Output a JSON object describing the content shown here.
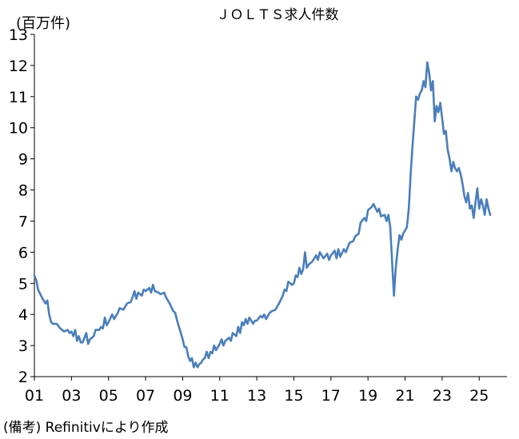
{
  "chart_data": {
    "type": "line",
    "title": "ＪＯＬＴＳ求人件数",
    "unit_label": "(百万件)",
    "source_note": "(備考) Refinitivにより作成",
    "xlabel": "",
    "ylabel": "",
    "x_tick_labels": [
      "01",
      "03",
      "05",
      "07",
      "09",
      "11",
      "13",
      "15",
      "17",
      "19",
      "21",
      "23",
      "25"
    ],
    "x_ticks": [
      2001,
      2003,
      2005,
      2007,
      2009,
      2011,
      2013,
      2015,
      2017,
      2019,
      2021,
      2023,
      2025
    ],
    "xlim": [
      2001,
      2026.5
    ],
    "y_ticks": [
      2,
      3,
      4,
      5,
      6,
      7,
      8,
      9,
      10,
      11,
      12,
      13
    ],
    "ylim": [
      2,
      13
    ],
    "grid": false,
    "line_color": "#4a7ebb",
    "series": [
      {
        "points": [
          [
            2001.0,
            5.25
          ],
          [
            2001.1,
            5.1
          ],
          [
            2001.2,
            4.8
          ],
          [
            2001.4,
            4.55
          ],
          [
            2001.6,
            4.35
          ],
          [
            2001.7,
            4.45
          ],
          [
            2001.8,
            4.0
          ],
          [
            2001.9,
            3.75
          ],
          [
            2002.0,
            3.7
          ],
          [
            2002.2,
            3.7
          ],
          [
            2002.4,
            3.55
          ],
          [
            2002.6,
            3.45
          ],
          [
            2002.8,
            3.5
          ],
          [
            2002.9,
            3.4
          ],
          [
            2003.0,
            3.45
          ],
          [
            2003.1,
            3.3
          ],
          [
            2003.2,
            3.5
          ],
          [
            2003.3,
            3.15
          ],
          [
            2003.4,
            3.3
          ],
          [
            2003.5,
            3.1
          ],
          [
            2003.6,
            3.1
          ],
          [
            2003.7,
            3.25
          ],
          [
            2003.8,
            3.4
          ],
          [
            2003.9,
            3.05
          ],
          [
            2004.0,
            3.2
          ],
          [
            2004.2,
            3.3
          ],
          [
            2004.3,
            3.5
          ],
          [
            2004.5,
            3.5
          ],
          [
            2004.6,
            3.6
          ],
          [
            2004.7,
            3.55
          ],
          [
            2004.8,
            3.9
          ],
          [
            2004.9,
            3.65
          ],
          [
            2005.0,
            3.75
          ],
          [
            2005.2,
            4.0
          ],
          [
            2005.3,
            3.85
          ],
          [
            2005.5,
            4.05
          ],
          [
            2005.6,
            4.2
          ],
          [
            2005.8,
            4.15
          ],
          [
            2006.0,
            4.35
          ],
          [
            2006.2,
            4.4
          ],
          [
            2006.3,
            4.55
          ],
          [
            2006.4,
            4.75
          ],
          [
            2006.5,
            4.5
          ],
          [
            2006.6,
            4.7
          ],
          [
            2006.8,
            4.6
          ],
          [
            2006.9,
            4.8
          ],
          [
            2007.0,
            4.75
          ],
          [
            2007.2,
            4.85
          ],
          [
            2007.3,
            4.7
          ],
          [
            2007.4,
            4.95
          ],
          [
            2007.5,
            4.75
          ],
          [
            2007.7,
            4.7
          ],
          [
            2007.8,
            4.65
          ],
          [
            2008.0,
            4.7
          ],
          [
            2008.1,
            4.55
          ],
          [
            2008.3,
            4.35
          ],
          [
            2008.5,
            4.1
          ],
          [
            2008.6,
            4.05
          ],
          [
            2008.7,
            3.8
          ],
          [
            2008.8,
            3.6
          ],
          [
            2009.0,
            3.2
          ],
          [
            2009.1,
            2.95
          ],
          [
            2009.2,
            2.95
          ],
          [
            2009.3,
            2.65
          ],
          [
            2009.4,
            2.5
          ],
          [
            2009.5,
            2.6
          ],
          [
            2009.6,
            2.3
          ],
          [
            2009.7,
            2.45
          ],
          [
            2009.8,
            2.3
          ],
          [
            2009.9,
            2.4
          ],
          [
            2010.0,
            2.45
          ],
          [
            2010.1,
            2.55
          ],
          [
            2010.2,
            2.6
          ],
          [
            2010.3,
            2.8
          ],
          [
            2010.4,
            2.6
          ],
          [
            2010.5,
            2.8
          ],
          [
            2010.6,
            2.75
          ],
          [
            2010.7,
            3.0
          ],
          [
            2010.8,
            2.85
          ],
          [
            2011.0,
            3.05
          ],
          [
            2011.1,
            3.2
          ],
          [
            2011.2,
            3.0
          ],
          [
            2011.3,
            3.15
          ],
          [
            2011.5,
            3.25
          ],
          [
            2011.6,
            3.15
          ],
          [
            2011.7,
            3.4
          ],
          [
            2011.9,
            3.3
          ],
          [
            2012.0,
            3.6
          ],
          [
            2012.1,
            3.4
          ],
          [
            2012.2,
            3.75
          ],
          [
            2012.3,
            3.65
          ],
          [
            2012.4,
            3.85
          ],
          [
            2012.5,
            3.7
          ],
          [
            2012.6,
            3.9
          ],
          [
            2012.8,
            3.7
          ],
          [
            2012.9,
            3.8
          ],
          [
            2013.0,
            3.8
          ],
          [
            2013.2,
            3.95
          ],
          [
            2013.3,
            3.9
          ],
          [
            2013.4,
            4.0
          ],
          [
            2013.5,
            3.85
          ],
          [
            2013.7,
            4.05
          ],
          [
            2013.8,
            4.1
          ],
          [
            2014.0,
            4.15
          ],
          [
            2014.2,
            4.35
          ],
          [
            2014.4,
            4.6
          ],
          [
            2014.5,
            4.8
          ],
          [
            2014.6,
            4.75
          ],
          [
            2014.7,
            5.05
          ],
          [
            2014.9,
            4.95
          ],
          [
            2015.0,
            5.0
          ],
          [
            2015.1,
            5.25
          ],
          [
            2015.2,
            5.2
          ],
          [
            2015.3,
            5.5
          ],
          [
            2015.4,
            5.3
          ],
          [
            2015.5,
            5.45
          ],
          [
            2015.6,
            6.0
          ],
          [
            2015.7,
            5.5
          ],
          [
            2015.8,
            5.6
          ],
          [
            2016.0,
            5.7
          ],
          [
            2016.2,
            5.9
          ],
          [
            2016.3,
            5.75
          ],
          [
            2016.4,
            6.0
          ],
          [
            2016.6,
            5.8
          ],
          [
            2016.8,
            5.95
          ],
          [
            2016.9,
            5.75
          ],
          [
            2017.0,
            5.9
          ],
          [
            2017.2,
            6.05
          ],
          [
            2017.3,
            5.8
          ],
          [
            2017.4,
            6.1
          ],
          [
            2017.5,
            5.85
          ],
          [
            2017.7,
            6.1
          ],
          [
            2017.8,
            6.0
          ],
          [
            2018.0,
            6.3
          ],
          [
            2018.2,
            6.35
          ],
          [
            2018.3,
            6.5
          ],
          [
            2018.5,
            6.6
          ],
          [
            2018.6,
            6.95
          ],
          [
            2018.8,
            7.1
          ],
          [
            2018.9,
            7.0
          ],
          [
            2019.0,
            7.35
          ],
          [
            2019.2,
            7.45
          ],
          [
            2019.3,
            7.55
          ],
          [
            2019.5,
            7.3
          ],
          [
            2019.6,
            7.4
          ],
          [
            2019.7,
            7.15
          ],
          [
            2019.9,
            7.2
          ],
          [
            2020.0,
            7.0
          ],
          [
            2020.1,
            7.2
          ],
          [
            2020.2,
            6.8
          ],
          [
            2020.3,
            5.7
          ],
          [
            2020.4,
            4.6
          ],
          [
            2020.5,
            5.5
          ],
          [
            2020.6,
            6.1
          ],
          [
            2020.7,
            6.55
          ],
          [
            2020.8,
            6.4
          ],
          [
            2020.9,
            6.6
          ],
          [
            2021.0,
            6.7
          ],
          [
            2021.1,
            6.8
          ],
          [
            2021.2,
            7.4
          ],
          [
            2021.3,
            8.5
          ],
          [
            2021.4,
            9.4
          ],
          [
            2021.5,
            10.2
          ],
          [
            2021.6,
            11.0
          ],
          [
            2021.7,
            10.9
          ],
          [
            2021.8,
            11.1
          ],
          [
            2021.9,
            11.2
          ],
          [
            2022.0,
            11.5
          ],
          [
            2022.1,
            11.3
          ],
          [
            2022.2,
            12.1
          ],
          [
            2022.3,
            11.75
          ],
          [
            2022.4,
            11.2
          ],
          [
            2022.5,
            11.5
          ],
          [
            2022.6,
            10.2
          ],
          [
            2022.7,
            10.7
          ],
          [
            2022.8,
            10.5
          ],
          [
            2022.9,
            10.8
          ],
          [
            2023.0,
            10.3
          ],
          [
            2023.1,
            9.8
          ],
          [
            2023.2,
            9.9
          ],
          [
            2023.3,
            9.3
          ],
          [
            2023.4,
            9.0
          ],
          [
            2023.5,
            8.6
          ],
          [
            2023.6,
            8.9
          ],
          [
            2023.7,
            8.7
          ],
          [
            2023.8,
            8.6
          ],
          [
            2023.9,
            8.7
          ],
          [
            2024.0,
            8.5
          ],
          [
            2024.1,
            8.2
          ],
          [
            2024.2,
            7.8
          ],
          [
            2024.3,
            7.6
          ],
          [
            2024.4,
            7.9
          ],
          [
            2024.5,
            7.4
          ],
          [
            2024.6,
            7.5
          ],
          [
            2024.7,
            7.1
          ],
          [
            2024.8,
            7.6
          ],
          [
            2024.9,
            8.05
          ],
          [
            2025.0,
            7.4
          ],
          [
            2025.1,
            7.7
          ],
          [
            2025.2,
            7.5
          ],
          [
            2025.3,
            7.2
          ],
          [
            2025.4,
            7.7
          ],
          [
            2025.5,
            7.4
          ],
          [
            2025.6,
            7.2
          ]
        ]
      }
    ]
  }
}
